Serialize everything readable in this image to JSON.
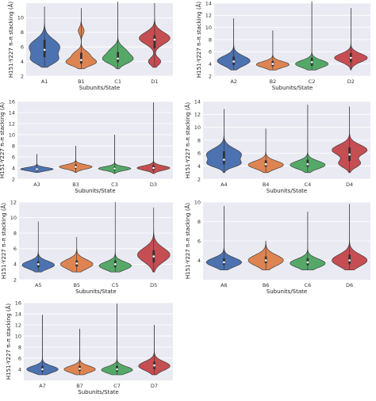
{
  "colors": {
    "A": "#4c72b0",
    "B": "#dd8452",
    "C": "#55a868",
    "D": "#c44e52",
    "panel_bg": "#eaeaf2",
    "grid": "#ffffff"
  },
  "chart_data": [
    {
      "type": "violin",
      "xlabel": "Subunits/State",
      "ylabel": "H151-Y227 π–π stacking (Å)",
      "categories": [
        "A1",
        "B1",
        "C1",
        "D1"
      ],
      "ylim": [
        2,
        12
      ],
      "yticks": [
        2,
        4,
        6,
        8,
        10
      ],
      "series": [
        {
          "min": 3.2,
          "max": 11.5,
          "median": 5.6,
          "q1": 4.6,
          "q3": 7.0,
          "modes": [
            [
              6.0,
              1.0,
              1.0
            ],
            [
              4.2,
              0.7,
              0.6
            ]
          ]
        },
        {
          "min": 3.0,
          "max": 11.3,
          "median": 4.2,
          "q1": 3.7,
          "q3": 5.2,
          "modes": [
            [
              3.9,
              1.0,
              0.5
            ],
            [
              5.0,
              0.5,
              0.5
            ],
            [
              8.2,
              0.2,
              0.5
            ]
          ]
        },
        {
          "min": 3.0,
          "max": 12.2,
          "median": 4.4,
          "q1": 3.9,
          "q3": 5.3,
          "modes": [
            [
              4.3,
              1.0,
              0.6
            ],
            [
              5.5,
              0.5,
              0.6
            ]
          ]
        },
        {
          "min": 3.2,
          "max": 12.0,
          "median": 7.0,
          "q1": 5.8,
          "q3": 7.6,
          "modes": [
            [
              7.2,
              1.0,
              0.8
            ],
            [
              4.0,
              0.4,
              0.5
            ]
          ]
        }
      ]
    },
    {
      "type": "violin",
      "xlabel": "Subunits/State",
      "ylabel": "H151-Y227 π–π stacking (Å)",
      "categories": [
        "A2",
        "B2",
        "C2",
        "D2"
      ],
      "ylim": [
        2,
        14
      ],
      "yticks": [
        2,
        4,
        6,
        8,
        10,
        12,
        14
      ],
      "series": [
        {
          "min": 3.0,
          "max": 11.5,
          "median": 4.4,
          "q1": 3.8,
          "q3": 5.2,
          "modes": [
            [
              4.5,
              1.0,
              0.8
            ]
          ]
        },
        {
          "min": 3.0,
          "max": 9.5,
          "median": 4.0,
          "q1": 3.6,
          "q3": 4.5,
          "modes": [
            [
              3.9,
              1.0,
              0.5
            ]
          ]
        },
        {
          "min": 3.0,
          "max": 14.3,
          "median": 4.3,
          "q1": 3.7,
          "q3": 5.0,
          "modes": [
            [
              4.0,
              1.0,
              0.6
            ]
          ]
        },
        {
          "min": 3.0,
          "max": 13.2,
          "median": 5.0,
          "q1": 4.3,
          "q3": 5.8,
          "modes": [
            [
              5.0,
              1.0,
              0.7
            ]
          ]
        }
      ]
    },
    {
      "type": "violin",
      "xlabel": "Subunits/State",
      "ylabel": "H151-Y227 π–π stacking (Å)",
      "categories": [
        "A3",
        "B3",
        "C3",
        "D3"
      ],
      "ylim": [
        2,
        16
      ],
      "yticks": [
        2,
        4,
        6,
        8,
        10,
        12,
        14,
        16
      ],
      "series": [
        {
          "min": 3.2,
          "max": 6.5,
          "median": 3.8,
          "q1": 3.6,
          "q3": 4.0,
          "modes": [
            [
              3.8,
              1.0,
              0.3
            ]
          ]
        },
        {
          "min": 3.2,
          "max": 8.0,
          "median": 4.2,
          "q1": 3.9,
          "q3": 4.6,
          "modes": [
            [
              4.2,
              1.0,
              0.4
            ]
          ]
        },
        {
          "min": 3.0,
          "max": 10.0,
          "median": 3.9,
          "q1": 3.6,
          "q3": 4.2,
          "modes": [
            [
              3.9,
              1.0,
              0.35
            ]
          ]
        },
        {
          "min": 3.0,
          "max": 15.8,
          "median": 4.0,
          "q1": 3.6,
          "q3": 4.5,
          "modes": [
            [
              4.0,
              1.0,
              0.4
            ]
          ]
        }
      ]
    },
    {
      "type": "violin",
      "xlabel": "Subunits/State",
      "ylabel": "H151-Y227 π–π stacking (Å)",
      "categories": [
        "A4",
        "B4",
        "C4",
        "D4"
      ],
      "ylim": [
        2,
        14
      ],
      "yticks": [
        2,
        4,
        6,
        8,
        10,
        12,
        14
      ],
      "series": [
        {
          "min": 3.0,
          "max": 12.8,
          "median": 5.0,
          "q1": 4.3,
          "q3": 6.3,
          "modes": [
            [
              5.8,
              1.0,
              0.9
            ],
            [
              4.3,
              0.7,
              0.5
            ]
          ]
        },
        {
          "min": 3.0,
          "max": 9.8,
          "median": 4.3,
          "q1": 3.9,
          "q3": 4.9,
          "modes": [
            [
              4.2,
              1.0,
              0.6
            ]
          ]
        },
        {
          "min": 3.0,
          "max": 13.5,
          "median": 4.3,
          "q1": 3.9,
          "q3": 5.0,
          "modes": [
            [
              4.2,
              1.0,
              0.6
            ]
          ]
        },
        {
          "min": 3.0,
          "max": 13.2,
          "median": 5.8,
          "q1": 4.8,
          "q3": 6.9,
          "modes": [
            [
              6.5,
              1.0,
              0.8
            ],
            [
              4.4,
              0.6,
              0.6
            ]
          ]
        }
      ]
    },
    {
      "type": "violin",
      "xlabel": "Subunits/State",
      "ylabel": "H151-Y227 π–π stacking (Å)",
      "categories": [
        "A5",
        "B5",
        "C5",
        "D5"
      ],
      "ylim": [
        2,
        12
      ],
      "yticks": [
        2,
        4,
        6,
        8,
        10,
        12
      ],
      "series": [
        {
          "min": 3.0,
          "max": 9.5,
          "median": 4.0,
          "q1": 3.6,
          "q3": 4.4,
          "modes": [
            [
              3.9,
              1.0,
              0.5
            ]
          ]
        },
        {
          "min": 3.0,
          "max": 7.5,
          "median": 4.1,
          "q1": 3.7,
          "q3": 4.5,
          "modes": [
            [
              4.0,
              1.0,
              0.6
            ]
          ]
        },
        {
          "min": 3.0,
          "max": 12.0,
          "median": 4.0,
          "q1": 3.6,
          "q3": 4.5,
          "modes": [
            [
              3.8,
              1.0,
              0.5
            ]
          ]
        },
        {
          "min": 3.0,
          "max": 11.3,
          "median": 5.0,
          "q1": 4.2,
          "q3": 5.8,
          "modes": [
            [
              5.2,
              1.0,
              0.9
            ]
          ]
        }
      ]
    },
    {
      "type": "violin",
      "xlabel": "Subunits/State",
      "ylabel": "H151-Y227 π–π stacking (Å)",
      "categories": [
        "A6",
        "B6",
        "C6",
        "D6"
      ],
      "ylim": [
        2,
        10
      ],
      "yticks": [
        4,
        6,
        8,
        10
      ],
      "series": [
        {
          "min": 3.0,
          "max": 9.6,
          "median": 3.8,
          "q1": 3.5,
          "q3": 4.2,
          "modes": [
            [
              3.8,
              1.0,
              0.45
            ]
          ]
        },
        {
          "min": 3.0,
          "max": 6.0,
          "median": 4.0,
          "q1": 3.7,
          "q3": 4.4,
          "modes": [
            [
              4.0,
              1.0,
              0.55
            ]
          ]
        },
        {
          "min": 3.0,
          "max": 9.0,
          "median": 3.8,
          "q1": 3.5,
          "q3": 4.2,
          "modes": [
            [
              3.7,
              1.0,
              0.45
            ]
          ]
        },
        {
          "min": 3.0,
          "max": 9.8,
          "median": 4.0,
          "q1": 3.6,
          "q3": 4.6,
          "modes": [
            [
              4.0,
              1.0,
              0.6
            ]
          ]
        }
      ]
    },
    {
      "type": "violin",
      "xlabel": "Subunits/State",
      "ylabel": "H151-Y227 π–π stacking (Å)",
      "categories": [
        "A7",
        "B7",
        "C7",
        "D7"
      ],
      "ylim": [
        2,
        16
      ],
      "yticks": [
        4,
        6,
        8,
        10,
        12,
        14,
        16
      ],
      "series": [
        {
          "min": 3.0,
          "max": 13.8,
          "median": 4.0,
          "q1": 3.6,
          "q3": 4.6,
          "modes": [
            [
              4.0,
              1.0,
              0.6
            ]
          ]
        },
        {
          "min": 3.0,
          "max": 11.3,
          "median": 4.1,
          "q1": 3.7,
          "q3": 4.6,
          "modes": [
            [
              4.0,
              1.0,
              0.6
            ]
          ]
        },
        {
          "min": 3.0,
          "max": 15.8,
          "median": 4.0,
          "q1": 3.6,
          "q3": 4.6,
          "modes": [
            [
              3.9,
              1.0,
              0.6
            ]
          ]
        },
        {
          "min": 3.0,
          "max": 12.0,
          "median": 4.7,
          "q1": 4.0,
          "q3": 5.4,
          "modes": [
            [
              4.6,
              1.0,
              0.8
            ]
          ]
        }
      ]
    }
  ]
}
